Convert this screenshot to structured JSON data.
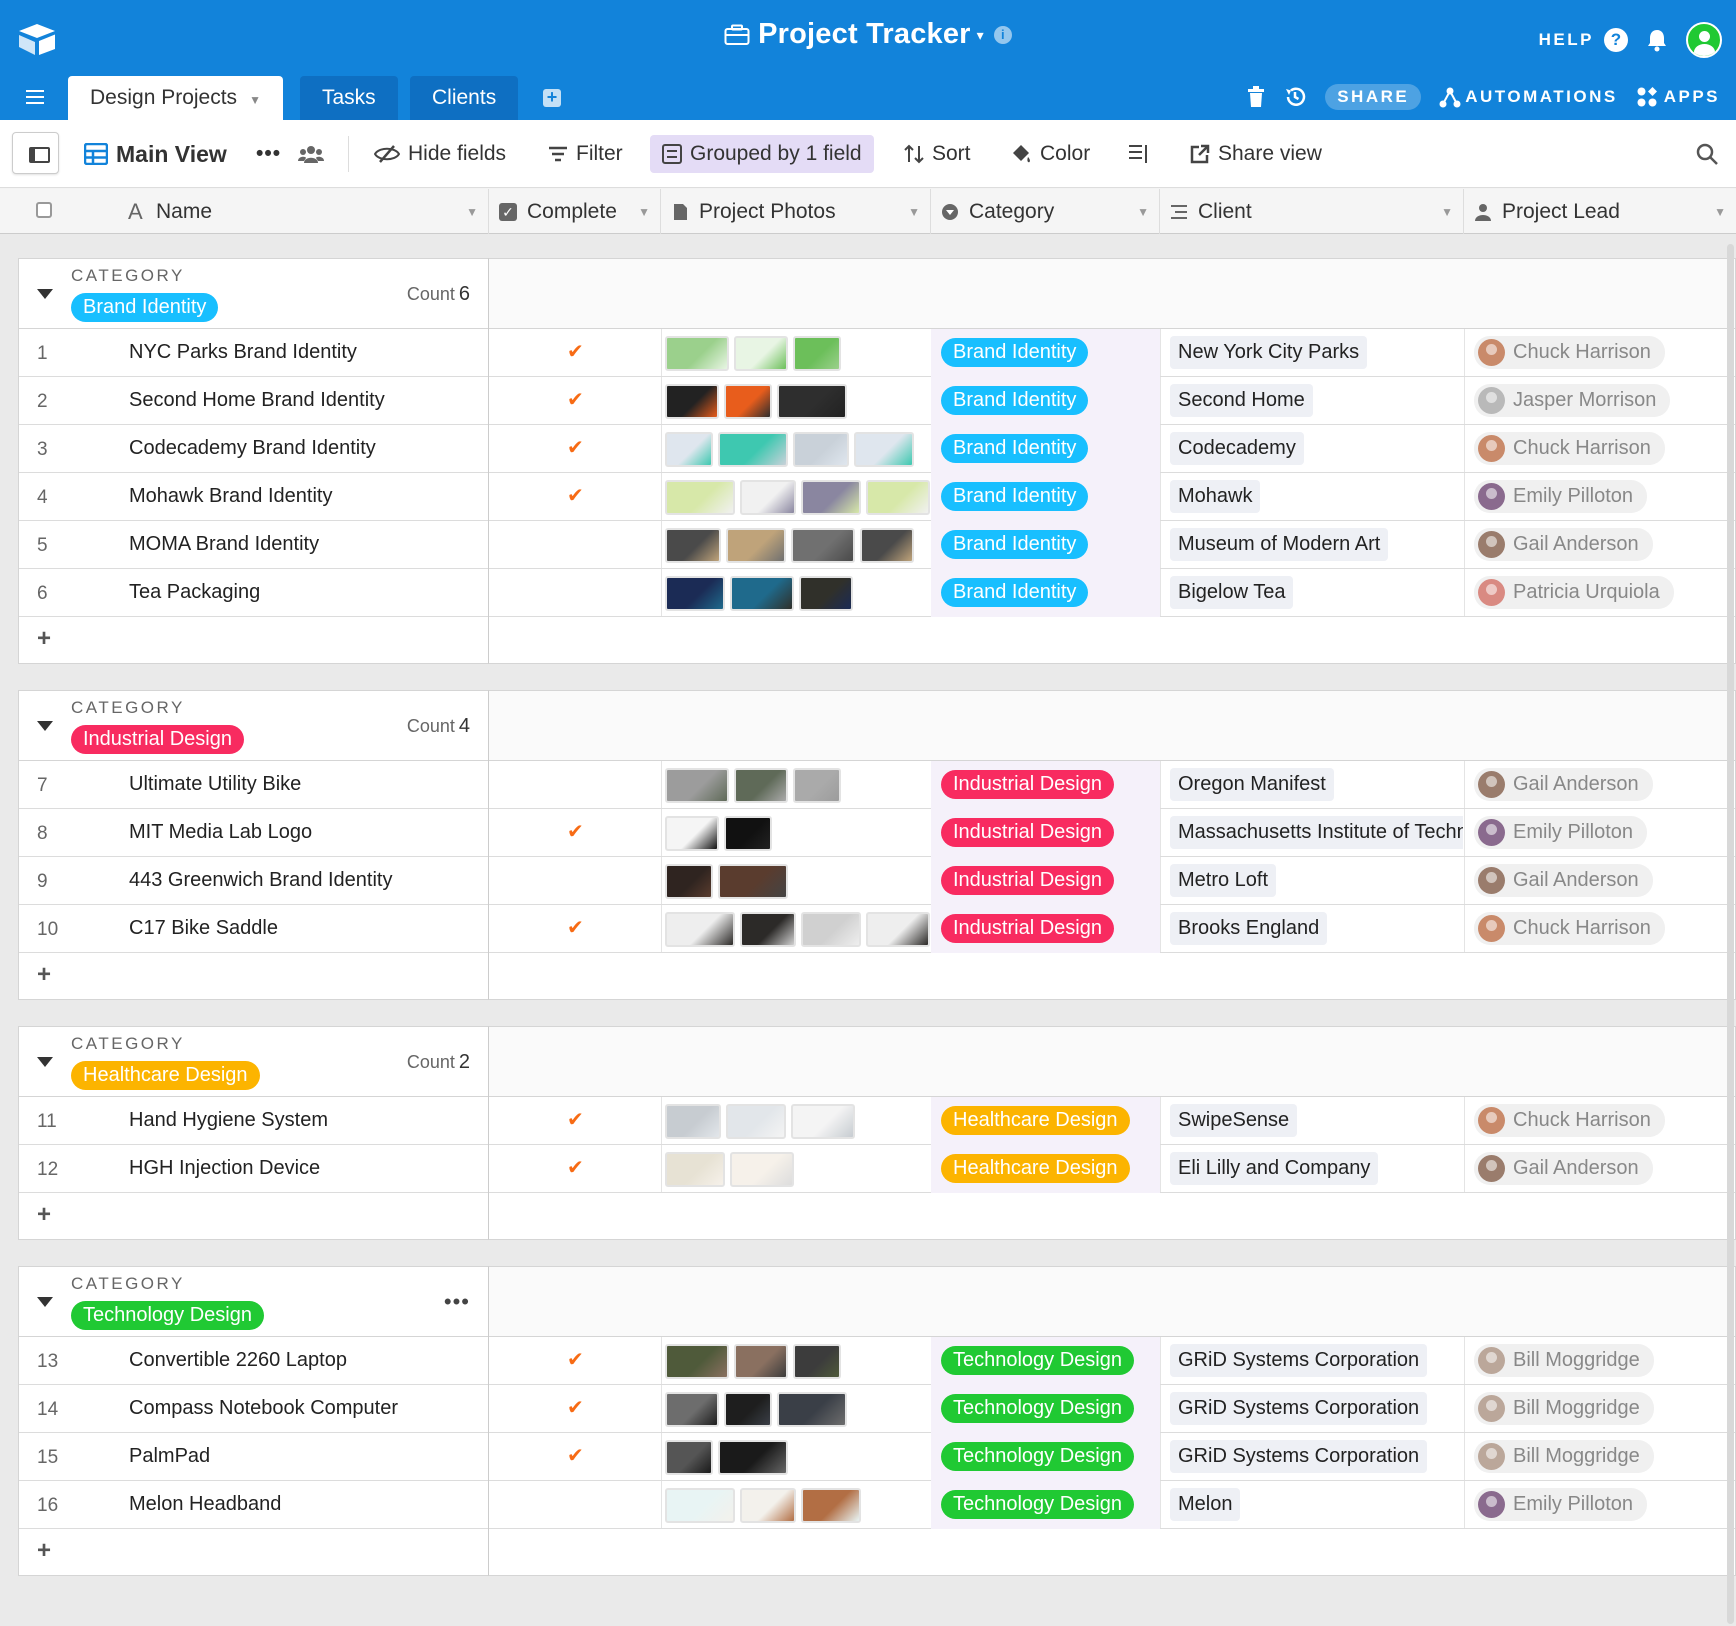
{
  "app": {
    "base_title": "Project Tracker",
    "help_label": "HELP",
    "share_label": "SHARE",
    "automations_label": "AUTOMATIONS",
    "apps_label": "APPS",
    "brand_color": "#1283da"
  },
  "tabs": [
    {
      "label": "Design Projects",
      "active": true
    },
    {
      "label": "Tasks",
      "active": false
    },
    {
      "label": "Clients",
      "active": false
    }
  ],
  "viewbar": {
    "view_name": "Main View",
    "hide_fields": "Hide fields",
    "filter": "Filter",
    "grouped": "Grouped by 1 field",
    "sort": "Sort",
    "color": "Color",
    "share_view": "Share view"
  },
  "columns": {
    "name": "Name",
    "complete": "Complete",
    "photos": "Project Photos",
    "category": "Category",
    "client": "Client",
    "lead": "Project Lead"
  },
  "groups": [
    {
      "label": "CATEGORY",
      "category": "Brand Identity",
      "color": "#18bfff",
      "count_label": "Count",
      "count": "6",
      "rows": [
        {
          "num": "1",
          "name": "NYC Parks Brand Identity",
          "complete": true,
          "photos": 3,
          "client": "New York City Parks",
          "lead": "Chuck Harrison"
        },
        {
          "num": "2",
          "name": "Second Home Brand Identity",
          "complete": true,
          "photos": 3,
          "client": "Second Home",
          "lead": "Jasper Morrison"
        },
        {
          "num": "3",
          "name": "Codecademy Brand Identity",
          "complete": true,
          "photos": 4,
          "client": "Codecademy",
          "lead": "Chuck Harrison"
        },
        {
          "num": "4",
          "name": "Mohawk Brand Identity",
          "complete": true,
          "photos": 4,
          "client": "Mohawk",
          "lead": "Emily Pilloton"
        },
        {
          "num": "5",
          "name": "MOMA Brand Identity",
          "complete": false,
          "photos": 4,
          "client": "Museum of Modern Art",
          "lead": "Gail Anderson"
        },
        {
          "num": "6",
          "name": "Tea Packaging",
          "complete": false,
          "photos": 3,
          "client": "Bigelow Tea",
          "lead": "Patricia Urquiola"
        }
      ]
    },
    {
      "label": "CATEGORY",
      "category": "Industrial Design",
      "color": "#f82b60",
      "count_label": "Count",
      "count": "4",
      "rows": [
        {
          "num": "7",
          "name": "Ultimate Utility Bike",
          "complete": false,
          "photos": 3,
          "client": "Oregon Manifest",
          "lead": "Gail Anderson"
        },
        {
          "num": "8",
          "name": "MIT Media Lab Logo",
          "complete": true,
          "photos": 2,
          "client": "Massachusetts Institute of Technology",
          "lead": "Emily Pilloton"
        },
        {
          "num": "9",
          "name": "443 Greenwich Brand Identity",
          "complete": false,
          "photos": 2,
          "client": "Metro Loft",
          "lead": "Gail Anderson"
        },
        {
          "num": "10",
          "name": "C17 Bike Saddle",
          "complete": true,
          "photos": 4,
          "client": "Brooks England",
          "lead": "Chuck Harrison"
        }
      ]
    },
    {
      "label": "CATEGORY",
      "category": "Healthcare Design",
      "color": "#fcb400",
      "count_label": "Count",
      "count": "2",
      "rows": [
        {
          "num": "11",
          "name": "Hand Hygiene System",
          "complete": true,
          "photos": 3,
          "client": "SwipeSense",
          "lead": "Chuck Harrison"
        },
        {
          "num": "12",
          "name": "HGH Injection Device",
          "complete": true,
          "photos": 2,
          "client": "Eli Lilly and Company",
          "lead": "Gail Anderson"
        }
      ]
    },
    {
      "label": "CATEGORY",
      "category": "Technology Design",
      "color": "#20c933",
      "count_label": "",
      "count": "",
      "more": "•••",
      "rows": [
        {
          "num": "13",
          "name": "Convertible 2260 Laptop",
          "complete": true,
          "photos": 3,
          "client": "GRiD Systems Corporation",
          "lead": "Bill Moggridge"
        },
        {
          "num": "14",
          "name": "Compass Notebook Computer",
          "complete": true,
          "photos": 3,
          "client": "GRiD Systems Corporation",
          "lead": "Bill Moggridge"
        },
        {
          "num": "15",
          "name": "PalmPad",
          "complete": true,
          "photos": 2,
          "client": "GRiD Systems Corporation",
          "lead": "Bill Moggridge"
        },
        {
          "num": "16",
          "name": "Melon Headband",
          "complete": false,
          "photos": 3,
          "client": "Melon",
          "lead": "Emily Pilloton"
        }
      ]
    }
  ]
}
